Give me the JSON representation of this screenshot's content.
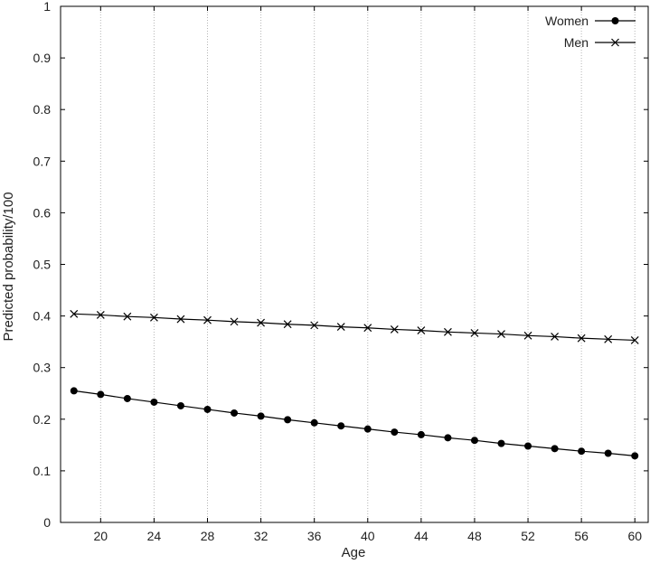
{
  "chart_data": {
    "type": "line",
    "title": "",
    "xlabel": "Age",
    "ylabel": "Predicted probability/100",
    "xlim": [
      17,
      61
    ],
    "ylim": [
      0,
      1
    ],
    "xticks": [
      20,
      24,
      28,
      32,
      36,
      40,
      44,
      48,
      52,
      56,
      60
    ],
    "yticks": [
      0,
      0.1,
      0.2,
      0.3,
      0.4,
      0.5,
      0.6,
      0.7,
      0.8,
      0.9,
      1
    ],
    "ytick_labels": [
      "0",
      "0.1",
      "0.2",
      "0.3",
      "0.4",
      "0.5",
      "0.6",
      "0.7",
      "0.8",
      "0.9",
      "1"
    ],
    "grid": "vertical dotted at x ticks",
    "legend_position": "top-right",
    "x": [
      18,
      20,
      22,
      24,
      26,
      28,
      30,
      32,
      34,
      36,
      38,
      40,
      42,
      44,
      46,
      48,
      50,
      52,
      54,
      56,
      58,
      60
    ],
    "series": [
      {
        "name": "Women",
        "marker": "filled-circle",
        "color": "#000000",
        "values": [
          0.255,
          0.248,
          0.24,
          0.233,
          0.226,
          0.219,
          0.212,
          0.206,
          0.199,
          0.193,
          0.187,
          0.181,
          0.175,
          0.17,
          0.164,
          0.159,
          0.153,
          0.148,
          0.143,
          0.138,
          0.134,
          0.129
        ]
      },
      {
        "name": "Men",
        "marker": "cross",
        "color": "#000000",
        "values": [
          0.404,
          0.402,
          0.399,
          0.397,
          0.394,
          0.392,
          0.389,
          0.387,
          0.384,
          0.382,
          0.379,
          0.377,
          0.374,
          0.372,
          0.369,
          0.367,
          0.365,
          0.362,
          0.36,
          0.357,
          0.355,
          0.353
        ]
      }
    ]
  }
}
